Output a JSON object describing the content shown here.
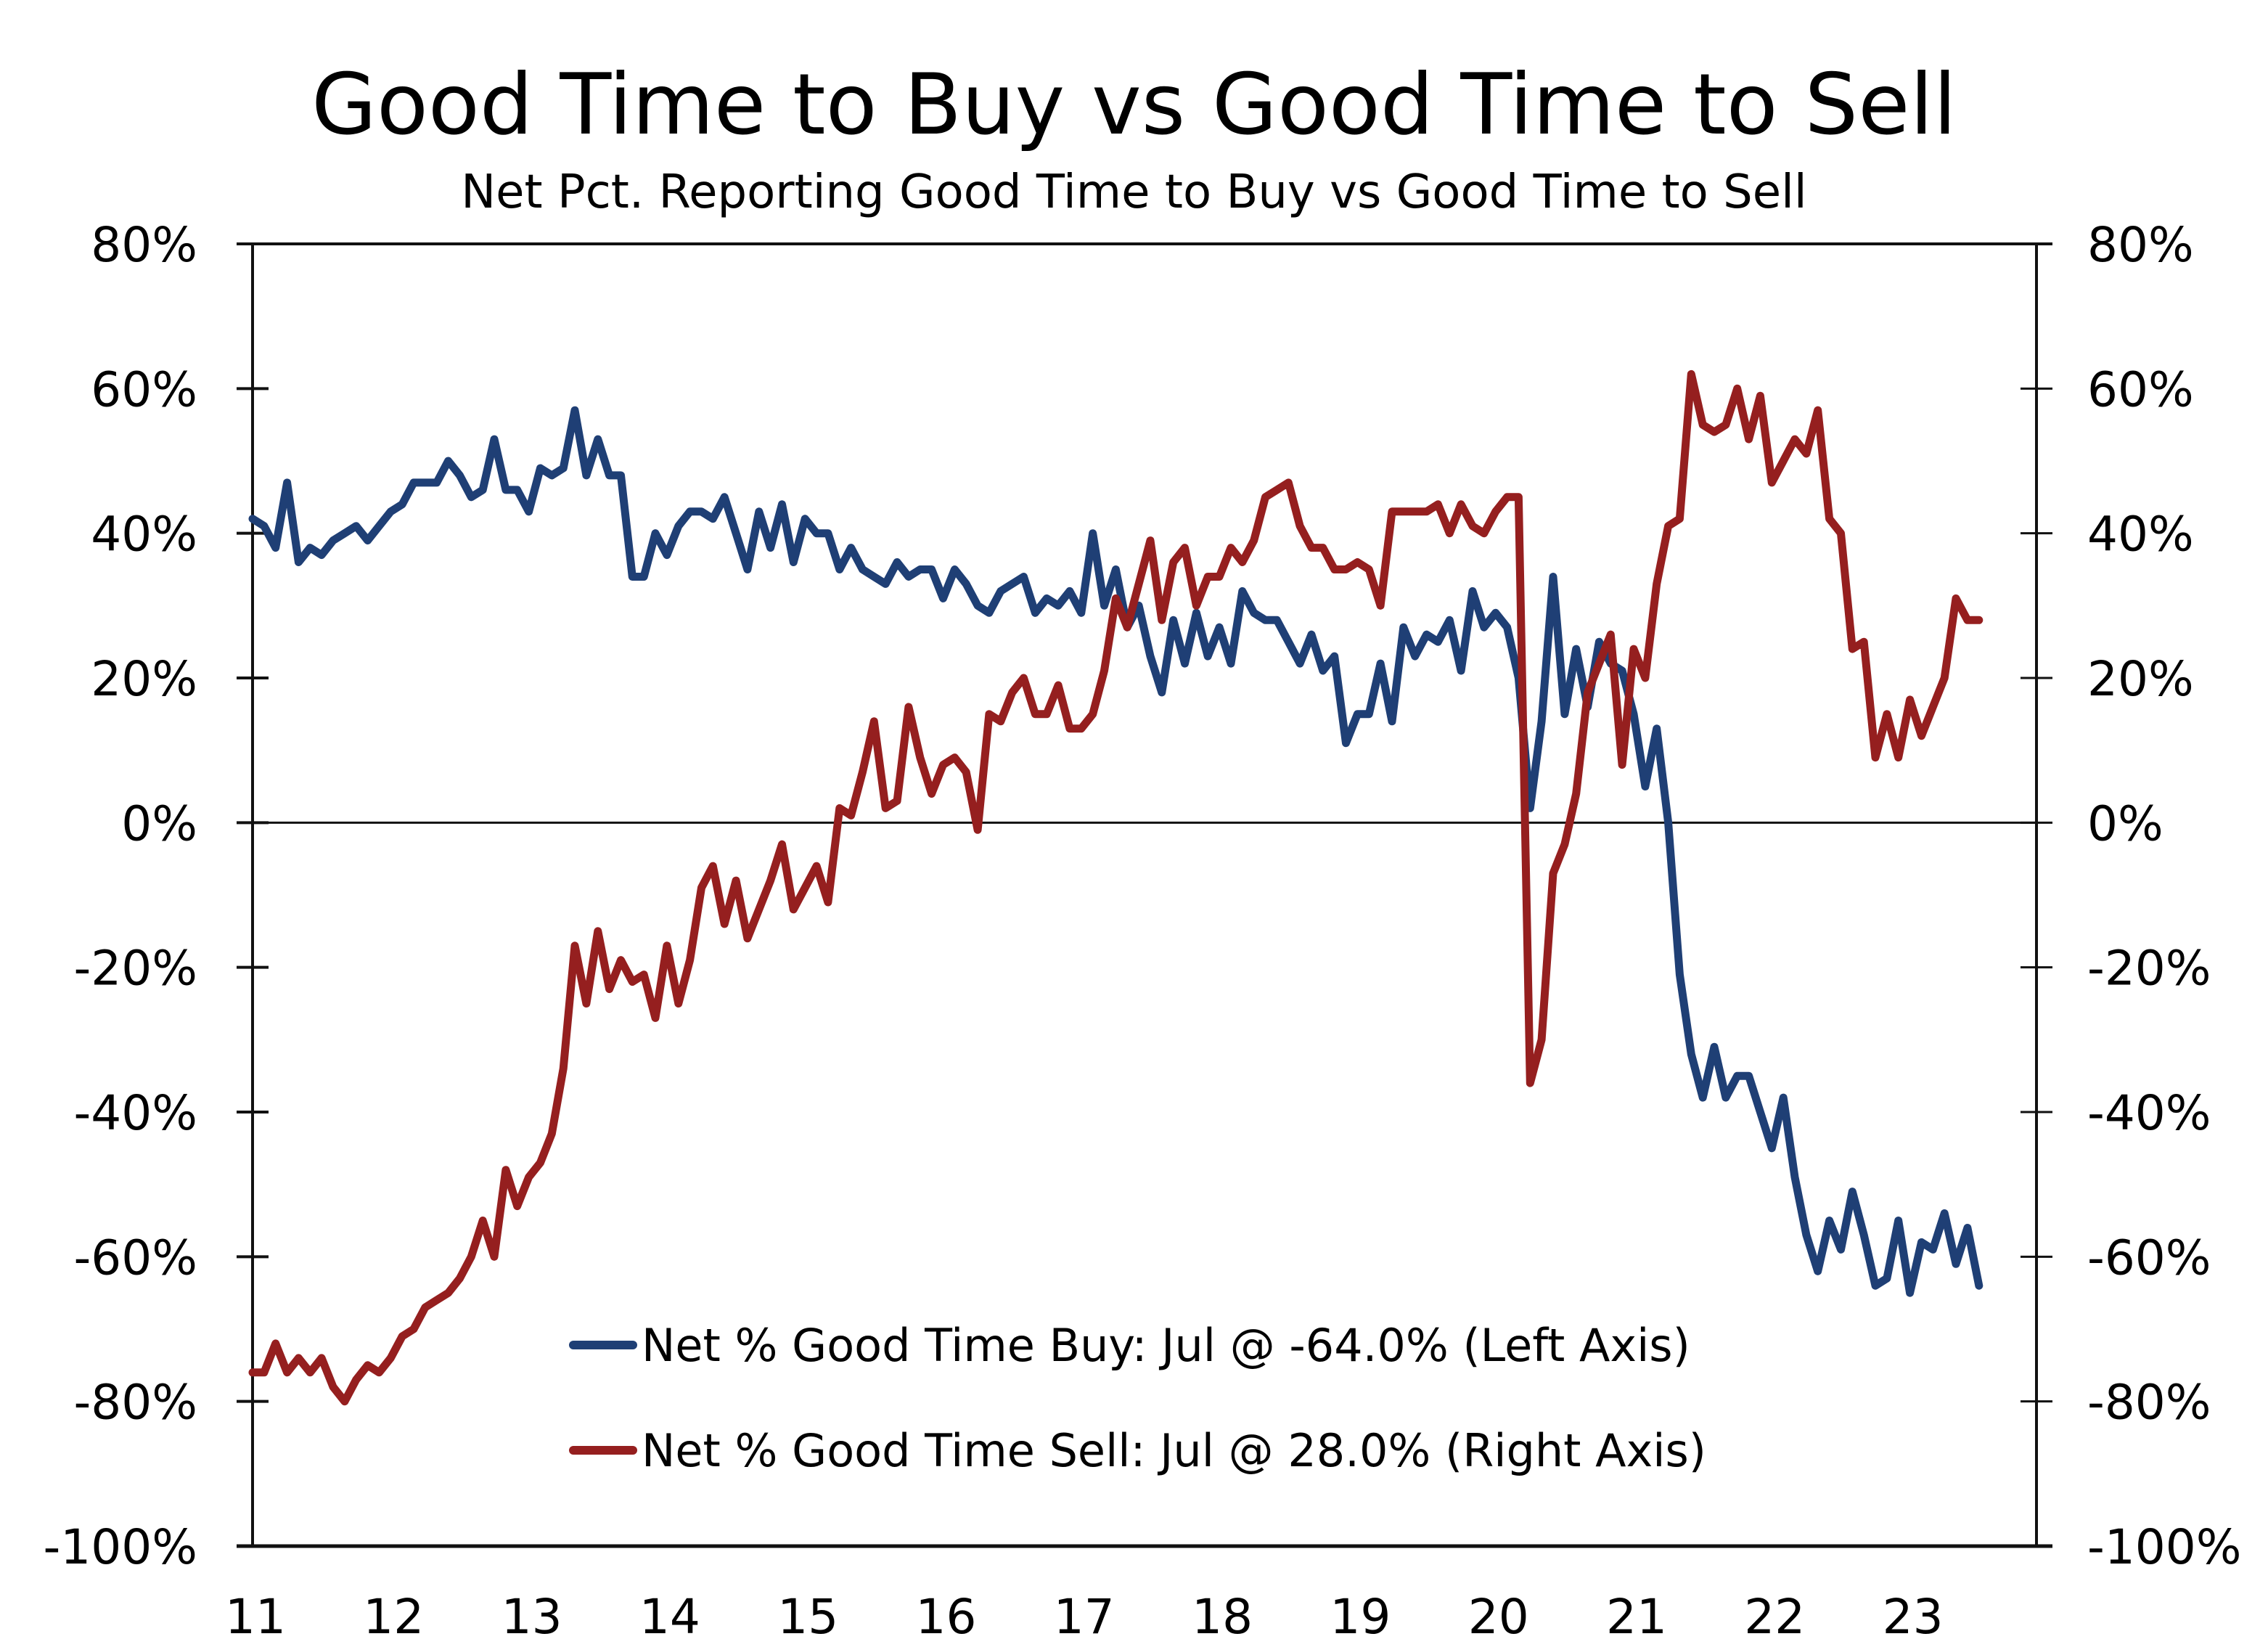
{
  "chart_data": {
    "type": "line",
    "title": "Good Time to Buy vs Good Time to Sell",
    "subtitle": "Net Pct. Reporting Good Time to Buy vs Good Time to Sell",
    "xlabel": "",
    "ylabel_left": "",
    "ylabel_right": "",
    "x_start": "2011-01",
    "x_end": "2023-07",
    "frequency": "monthly",
    "x_tick_labels": [
      "11",
      "12",
      "13",
      "14",
      "15",
      "16",
      "17",
      "18",
      "19",
      "20",
      "21",
      "22",
      "23"
    ],
    "y_tick_labels_left": [
      "80%",
      "60%",
      "40%",
      "20%",
      "0%",
      "-20%",
      "-40%",
      "-60%",
      "-80%",
      "-100%"
    ],
    "y_tick_labels_right": [
      "80%",
      "60%",
      "40%",
      "20%",
      "0%",
      "-20%",
      "-40%",
      "-60%",
      "-80%",
      "-100%"
    ],
    "ylim_left": [
      -100,
      80
    ],
    "ylim_right": [
      -100,
      80
    ],
    "zero_line": true,
    "grid": false,
    "legend_position": "bottom-center",
    "series": [
      {
        "name": "Net % Good Time Buy: Jul @ -64.0% (Left Axis)",
        "axis": "left",
        "color": "#1F3F75",
        "values": [
          42,
          41,
          38,
          47,
          36,
          38,
          37,
          39,
          40,
          41,
          39,
          41,
          43,
          44,
          47,
          47,
          47,
          50,
          48,
          45,
          46,
          53,
          46,
          46,
          43,
          49,
          48,
          49,
          57,
          48,
          53,
          48,
          48,
          34,
          34,
          40,
          37,
          41,
          43,
          43,
          42,
          45,
          40,
          35,
          43,
          38,
          44,
          36,
          42,
          40,
          40,
          35,
          38,
          35,
          34,
          33,
          36,
          34,
          35,
          35,
          31,
          35,
          33,
          30,
          29,
          32,
          33,
          34,
          29,
          31,
          30,
          32,
          29,
          40,
          30,
          35,
          27,
          30,
          23,
          18,
          28,
          22,
          29,
          23,
          27,
          22,
          32,
          29,
          28,
          28,
          25,
          22,
          26,
          21,
          23,
          11,
          15,
          15,
          22,
          14,
          27,
          23,
          26,
          25,
          28,
          21,
          32,
          27,
          29,
          27,
          20,
          2,
          14,
          34,
          15,
          24,
          16,
          25,
          22,
          21,
          15,
          5,
          13,
          0,
          -21,
          -32,
          -38,
          -31,
          -38,
          -35,
          -35,
          -40,
          -45,
          -38,
          -49,
          -57,
          -62,
          -55,
          -59,
          -51,
          -57,
          -64,
          -63,
          -55,
          -65,
          -58,
          -59,
          -54,
          -61,
          -56,
          -64
        ]
      },
      {
        "name": "Net % Good Time Sell: Jul @ 28.0% (Right Axis)",
        "axis": "right",
        "color": "#951F1F",
        "values": [
          -76,
          -76,
          -72,
          -76,
          -74,
          -76,
          -74,
          -78,
          -80,
          -77,
          -75,
          -76,
          -74,
          -71,
          -70,
          -67,
          -66,
          -65,
          -63,
          -60,
          -55,
          -60,
          -48,
          -53,
          -49,
          -47,
          -43,
          -34,
          -17,
          -25,
          -15,
          -23,
          -19,
          -22,
          -21,
          -27,
          -17,
          -25,
          -19,
          -9,
          -6,
          -14,
          -8,
          -16,
          -12,
          -8,
          -3,
          -12,
          -9,
          -6,
          -11,
          2,
          1,
          7,
          14,
          2,
          3,
          16,
          9,
          4,
          8,
          9,
          7,
          -1,
          15,
          14,
          18,
          20,
          15,
          15,
          19,
          13,
          13,
          15,
          21,
          31,
          27,
          33,
          39,
          28,
          36,
          38,
          30,
          34,
          34,
          38,
          36,
          39,
          45,
          46,
          47,
          41,
          38,
          38,
          35,
          35,
          36,
          35,
          30,
          43,
          43,
          43,
          43,
          44,
          40,
          44,
          41,
          40,
          43,
          45,
          45,
          -36,
          -30,
          -7,
          -3,
          4,
          18,
          22,
          26,
          8,
          24,
          20,
          33,
          41,
          42,
          62,
          55,
          54,
          55,
          60,
          53,
          59,
          47,
          50,
          53,
          51,
          57,
          42,
          40,
          24,
          25,
          9,
          15,
          9,
          17,
          12,
          16,
          20,
          31,
          28,
          28
        ]
      }
    ]
  }
}
